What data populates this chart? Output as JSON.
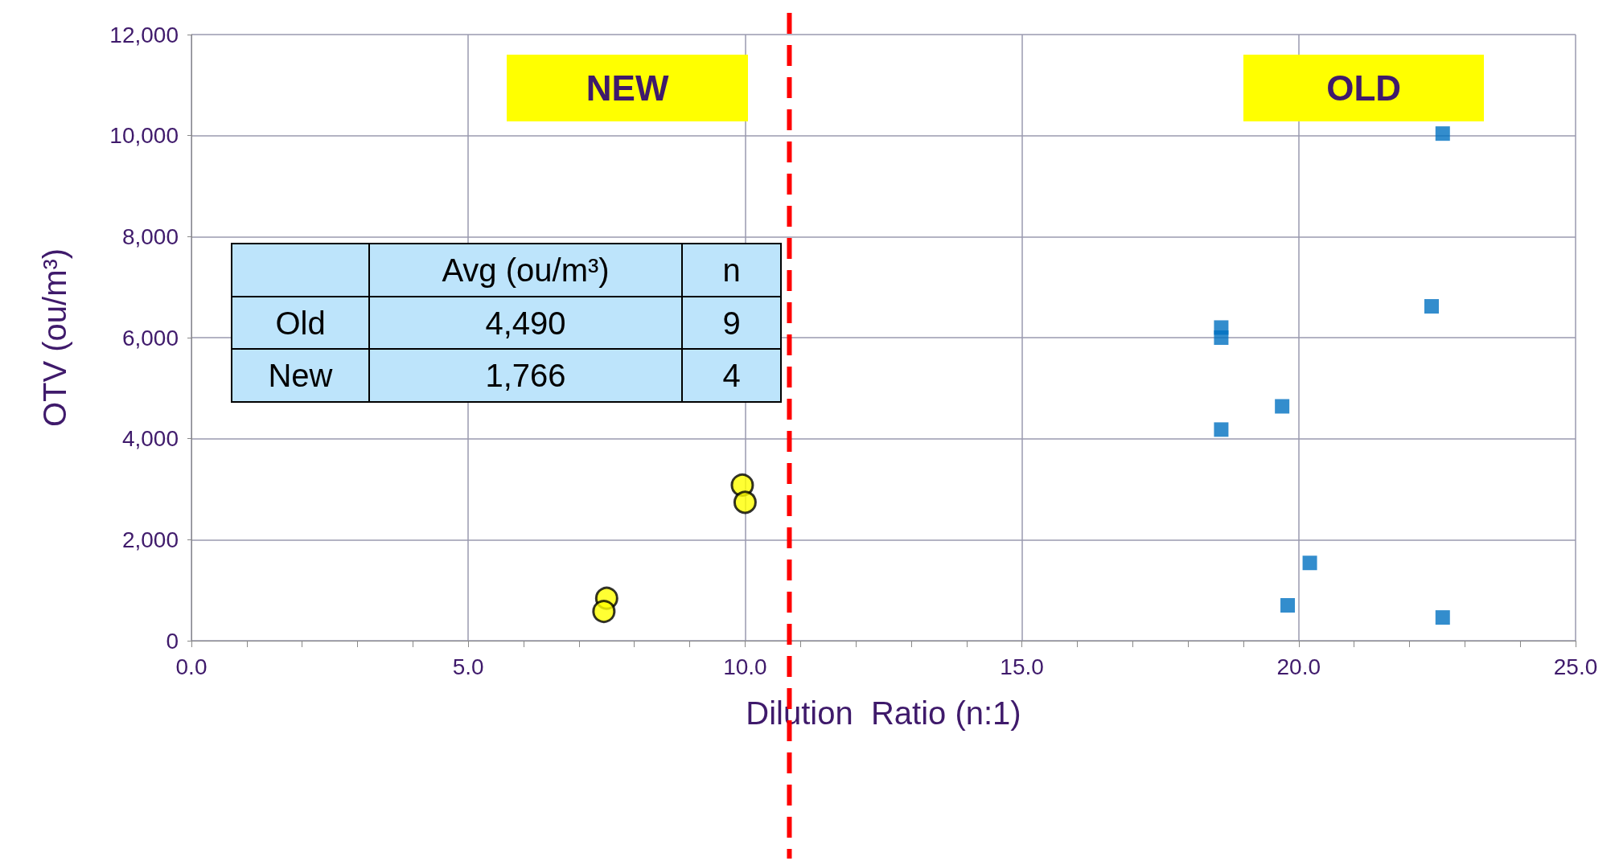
{
  "chart_data": {
    "type": "scatter",
    "xlabel": "Dilution  Ratio (n:1)",
    "ylabel": "OTV (ou/m³)",
    "xlim": [
      0,
      25
    ],
    "xticks": [
      {
        "value": 0,
        "label": "0.0"
      },
      {
        "value": 5,
        "label": "5.0"
      },
      {
        "value": 10,
        "label": "10.0"
      },
      {
        "value": 15,
        "label": "15.0"
      },
      {
        "value": 20,
        "label": "20.0"
      },
      {
        "value": 25,
        "label": "25.0"
      }
    ],
    "ylim": [
      0,
      12000
    ],
    "yticks": [
      {
        "value": 0,
        "label": "0"
      },
      {
        "value": 2000,
        "label": "2,000"
      },
      {
        "value": 4000,
        "label": "4,000"
      },
      {
        "value": 6000,
        "label": "6,000"
      },
      {
        "value": 8000,
        "label": "8,000"
      },
      {
        "value": 10000,
        "label": "10,000"
      },
      {
        "value": 12000,
        "label": "12,000"
      }
    ],
    "grid": true,
    "series": [
      {
        "color": "#0070c0",
        "marker": "square",
        "x": [
          18.6,
          18.6,
          18.6,
          19.7,
          19.8,
          20.2,
          22.4,
          22.6,
          22.6
        ],
        "values": [
          6000,
          6200,
          4180,
          4640,
          700,
          1540,
          6620,
          10040,
          460
        ]
      },
      {
        "color": "#ffff00",
        "marker": "circle",
        "x": [
          7.5,
          7.45,
          9.95,
          10.0
        ],
        "values": [
          840,
          580,
          3080,
          2740
        ]
      }
    ],
    "ref_lines": [
      {
        "axis": "x",
        "value": 10.8,
        "color": "#ff0000",
        "line_style": "dashed"
      }
    ],
    "annotations": [
      "NEW",
      "OLD",
      "Avg (ou/m³)",
      "n",
      "Old",
      "4,490",
      "9",
      "New",
      "1,766",
      "4"
    ]
  }
}
